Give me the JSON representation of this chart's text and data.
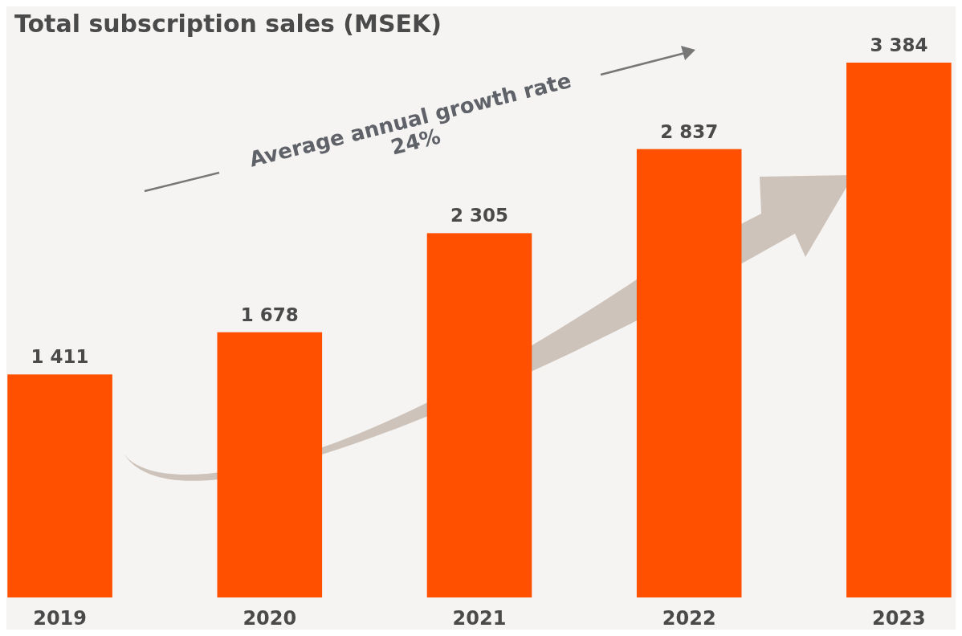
{
  "chart_data": {
    "type": "bar",
    "title": "Total subscription sales (MSEK)",
    "categories": [
      "2019",
      "2020",
      "2021",
      "2022",
      "2023"
    ],
    "values": [
      1411,
      1678,
      2305,
      2837,
      3384
    ],
    "value_labels": [
      "1 411",
      "1 678",
      "2 305",
      "2 837",
      "3 384"
    ],
    "color": "#ff5000",
    "annotations": [
      "Average annual growth rate",
      "24%"
    ]
  }
}
